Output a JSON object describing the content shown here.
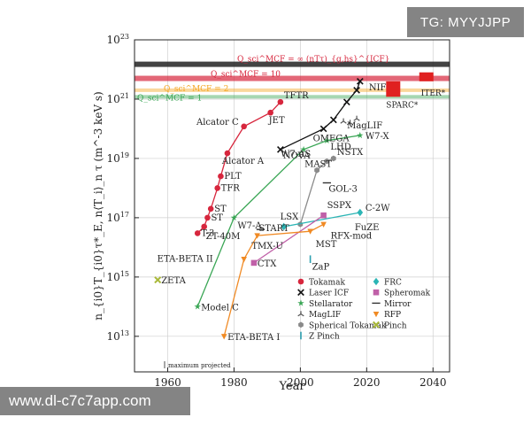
{
  "chart_data": {
    "type": "scatter",
    "title": "",
    "xlabel": "Year",
    "ylabel": "n_{i0}T_{i0}τ*_E, n⟨T_i⟩_n τ (m^-3 keV s)",
    "xlim": [
      1950,
      2045
    ],
    "ylim_log10": [
      11.8,
      23
    ],
    "x_ticks": [
      1960,
      1980,
      2000,
      2020,
      2040
    ],
    "y_tick_exponents": [
      13,
      15,
      17,
      19,
      21,
      23
    ],
    "y_tick_base": "10",
    "grid": true,
    "colors": {
      "tokamak": "#d7263d",
      "laser": "#111111",
      "stellarator": "#3aa655",
      "maglif": "#555555",
      "spherical": "#8a8a8a",
      "frc": "#2bb5b5",
      "spheromak": "#c060a8",
      "mirror": "#333333",
      "rfp": "#f08a24",
      "pinch": "#a8b838",
      "zpinch": "#2b9fb0",
      "orange_line": "#f5a623",
      "green_line": "#3aa655"
    },
    "thresholds": [
      {
        "name": "Q_sci^MCF = ∞",
        "value": 1.5e+22,
        "color": "#111111"
      },
      {
        "name": "Q_sci^MCF = 10",
        "value": 5e+21,
        "color": "#d7263d"
      },
      {
        "name": "Q_sci^MCF = 2",
        "value": 2e+21,
        "color": "#f5a623"
      },
      {
        "name": "Q_sci^MCF = 1",
        "value": 1.2e+21,
        "color": "#3aa655"
      }
    ],
    "threshold_labels": {
      "inf": "Q_sci^MCF = ∞",
      "ten": "Q_sci^MCF = 10",
      "two": "Q_sci^MCF = 2",
      "one": "Q_sci^MCF = 1",
      "icf": "(nTτ)_{g,hs}^{ICF}"
    },
    "series": [
      {
        "name": "Tokamak",
        "key": "tokamak",
        "connected": true,
        "points": [
          {
            "x": 1969,
            "y": 3e+16,
            "label": "T-3"
          },
          {
            "x": 1971,
            "y": 5e+16,
            "label": ""
          },
          {
            "x": 1972,
            "y": 1e+17,
            "label": "ST"
          },
          {
            "x": 1973,
            "y": 2e+17,
            "label": "ST"
          },
          {
            "x": 1975,
            "y": 1e+18,
            "label": "TFR"
          },
          {
            "x": 1976,
            "y": 2.5e+18,
            "label": "PLT"
          },
          {
            "x": 1978,
            "y": 1.5e+19,
            "label": "Alcator A"
          },
          {
            "x": 1983,
            "y": 1.2e+20,
            "label": "Alcator C"
          },
          {
            "x": 1991,
            "y": 3.5e+20,
            "label": "JET"
          },
          {
            "x": 1994,
            "y": 8e+20,
            "label": "TFTR"
          }
        ]
      },
      {
        "name": "Laser ICF",
        "key": "laser",
        "connected": true,
        "points": [
          {
            "x": 1994,
            "y": 2e+19,
            "label": "NOVA"
          },
          {
            "x": 2007,
            "y": 1e+20,
            "label": "OMEGA"
          },
          {
            "x": 2010,
            "y": 2e+20,
            "label": ""
          },
          {
            "x": 2014,
            "y": 8e+20,
            "label": ""
          },
          {
            "x": 2017,
            "y": 2e+21,
            "label": ""
          },
          {
            "x": 2018,
            "y": 4e+21,
            "label": "NIF"
          }
        ]
      },
      {
        "name": "Stellarator",
        "key": "stellarator",
        "connected": true,
        "points": [
          {
            "x": 1969,
            "y": 100000000000000.0,
            "label": "Model C"
          },
          {
            "x": 1980,
            "y": 1e+17,
            "label": "W7-A"
          },
          {
            "x": 2001,
            "y": 2e+19,
            "label": "W7-AS"
          },
          {
            "x": 2008,
            "y": 4e+19,
            "label": "LHD"
          },
          {
            "x": 2018,
            "y": 6e+19,
            "label": "W7-X"
          }
        ]
      },
      {
        "name": "MagLIF",
        "key": "maglif",
        "connected": false,
        "points": [
          {
            "x": 2013,
            "y": 1.8e+20,
            "label": "MagLIF"
          },
          {
            "x": 2015,
            "y": 1.6e+20,
            "label": ""
          },
          {
            "x": 2017,
            "y": 2.2e+20,
            "label": ""
          }
        ]
      },
      {
        "name": "Spherical Tokamak",
        "key": "spherical",
        "connected": true,
        "points": [
          {
            "x": 2000,
            "y": 6e+16,
            "label": ""
          },
          {
            "x": 2005,
            "y": 4e+18,
            "label": "MAST"
          },
          {
            "x": 2008,
            "y": 8e+18,
            "label": ""
          },
          {
            "x": 2010,
            "y": 1e+19,
            "label": "NSTX"
          }
        ]
      },
      {
        "name": "FRC",
        "key": "frc",
        "connected": true,
        "points": [
          {
            "x": 1995,
            "y": 5e+16,
            "label": "LSX"
          },
          {
            "x": 2018,
            "y": 1.5e+17,
            "label": "C-2W"
          }
        ]
      },
      {
        "name": "Spheromak",
        "key": "spheromak",
        "connected": true,
        "points": [
          {
            "x": 1986,
            "y": 3000000000000000.0,
            "label": "CTX"
          },
          {
            "x": 2007,
            "y": 1.2e+17,
            "label": "SSPX"
          }
        ]
      },
      {
        "name": "Mirror",
        "key": "mirror",
        "connected": false,
        "points": [
          {
            "x": 1988,
            "y": 4e+16,
            "label": "TMX-U"
          },
          {
            "x": 2008,
            "y": 1.5e+18,
            "label": "GOL-3"
          }
        ]
      },
      {
        "name": "RFP",
        "key": "rfp",
        "connected": true,
        "points": [
          {
            "x": 1977,
            "y": 10000000000000.0,
            "label": "ETA-BETA I"
          },
          {
            "x": 1983,
            "y": 4000000000000000.0,
            "label": "ETA-BETA II"
          },
          {
            "x": 1987,
            "y": 2.5e+16,
            "label": "ZT-40M"
          },
          {
            "x": 2003,
            "y": 3.5e+16,
            "label": "MST"
          },
          {
            "x": 2007,
            "y": 6e+16,
            "label": "RFX-mod"
          }
        ]
      },
      {
        "name": "Pinch",
        "key": "pinch",
        "connected": false,
        "points": [
          {
            "x": 1957,
            "y": 800000000000000.0,
            "label": "ZETA"
          }
        ]
      },
      {
        "name": "Z Pinch",
        "key": "zpinch",
        "connected": false,
        "points": [
          {
            "x": 2003,
            "y": 4000000000000000.0,
            "label": "ZaP"
          }
        ]
      }
    ],
    "extra_labels": {
      "start": "START",
      "fuze": "FuZE",
      "max_projected": "maximum projected",
      "sparc": "SPARC*",
      "iter": "ITER*"
    },
    "projected": [
      {
        "name": "SPARC*",
        "x": 2028,
        "y_low": 1.2e+21,
        "y_high": 4e+21,
        "color": "#e02020"
      },
      {
        "name": "ITER*",
        "x": 2038,
        "y_low": 4e+21,
        "y_high": 8e+21,
        "color": "#e02020"
      }
    ],
    "legend": {
      "placement": "bottom-right",
      "items": [
        {
          "label": "Tokamak",
          "key": "tokamak",
          "marker": "circle"
        },
        {
          "label": "Laser ICF",
          "key": "laser",
          "marker": "x"
        },
        {
          "label": "Stellarator",
          "key": "stellarator",
          "marker": "star"
        },
        {
          "label": "MagLIF",
          "key": "maglif",
          "marker": "tri"
        },
        {
          "label": "Spherical Tokamak",
          "key": "spherical",
          "marker": "hex"
        },
        {
          "label": "Z Pinch",
          "key": "zpinch",
          "marker": "bar"
        },
        {
          "label": "FRC",
          "key": "frc",
          "marker": "diamond"
        },
        {
          "label": "Spheromak",
          "key": "spheromak",
          "marker": "square"
        },
        {
          "label": "Mirror",
          "key": "mirror",
          "marker": "dash"
        },
        {
          "label": "RFP",
          "key": "rfp",
          "marker": "tridown"
        },
        {
          "label": "Pinch",
          "key": "pinch",
          "marker": "plus"
        }
      ]
    }
  },
  "watermarks": {
    "top": "TG: MYYJJPP",
    "bottom": "www.dl-c7c7app.com"
  }
}
